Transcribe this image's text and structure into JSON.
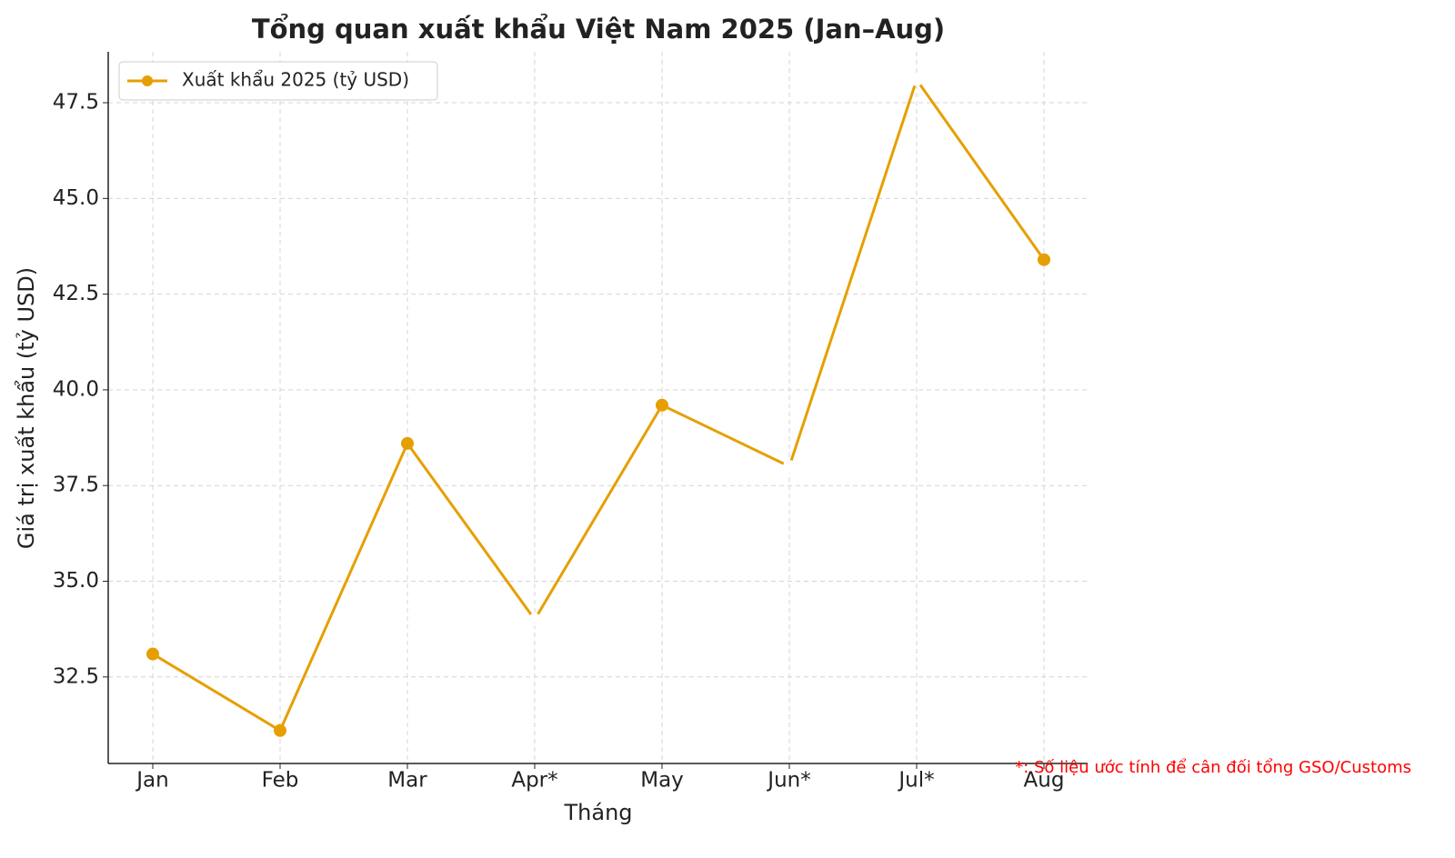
{
  "chart_data": {
    "type": "line",
    "title": "Tổng quan xuất khẩu Việt Nam 2025 (Jan–Aug)",
    "x_label": "Tháng",
    "y_label": "Giá trị xuất khẩu (tỷ USD)",
    "annotation": "*: Số liệu ước tính để cân đối tổng GSO/Customs",
    "annotation_color": "#ff0000",
    "categories": [
      "Jan",
      "Feb",
      "Mar",
      "Apr*",
      "May",
      "Jun*",
      "Jul*",
      "Aug"
    ],
    "series": [
      {
        "name": "Xuất khẩu 2025 (tỷ USD)",
        "color": "#e69f00",
        "values": [
          33.1,
          31.1,
          38.6,
          34.0,
          39.6,
          38.0,
          48.1,
          43.4
        ],
        "marker_colors": [
          "#e69f00",
          "#e69f00",
          "#e69f00",
          "#ffffff",
          "#e69f00",
          "#ffffff",
          "#ffffff",
          "#e69f00"
        ]
      }
    ],
    "ylim": [
      30.24,
      48.83
    ],
    "yticks": [
      {
        "value": 32.5,
        "label": "32.5"
      },
      {
        "value": 35,
        "label": "35.0"
      },
      {
        "value": 37.5,
        "label": "37.5"
      },
      {
        "value": 40,
        "label": "40.0"
      },
      {
        "value": 42.5,
        "label": "42.5"
      },
      {
        "value": 45,
        "label": "45.0"
      },
      {
        "value": 47.5,
        "label": "47.5"
      }
    ],
    "grid": true,
    "legend_position": "upper-left"
  }
}
